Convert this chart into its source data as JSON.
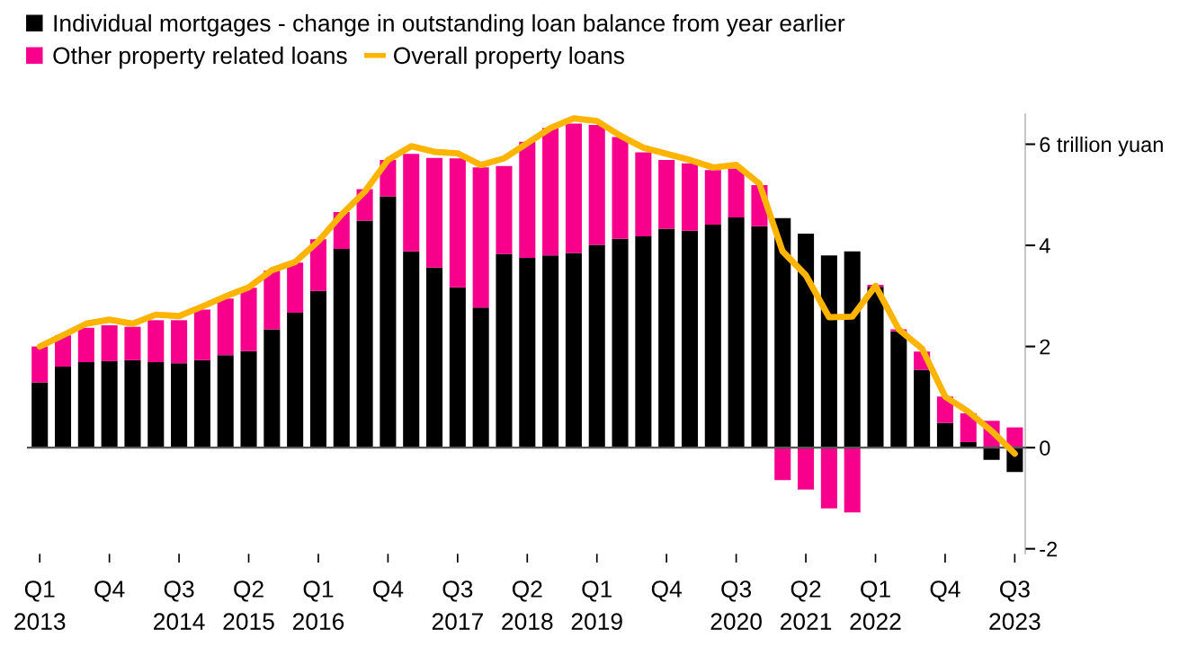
{
  "chart_data": {
    "type": "bar",
    "stacked": true,
    "categories": [
      "Q1\n2013",
      null,
      null,
      "Q4",
      null,
      null,
      "Q3\n2014",
      null,
      null,
      "Q2\n2015",
      null,
      null,
      "Q1\n2016",
      null,
      null,
      "Q4",
      null,
      null,
      "Q3\n2017",
      null,
      null,
      "Q2\n2018",
      null,
      null,
      "Q1\n2019",
      null,
      null,
      "Q4",
      null,
      null,
      "Q3\n2020",
      null,
      null,
      "Q2\n2021",
      null,
      null,
      "Q1\n2022",
      null,
      null,
      "Q4",
      null,
      null,
      "Q3\n2023"
    ],
    "series": [
      {
        "name": "Individual mortgages - change in outstanding loan balance from year earlier",
        "color": "#000000",
        "values": [
          1.29,
          1.6,
          1.69,
          1.71,
          1.73,
          1.69,
          1.67,
          1.73,
          1.83,
          1.91,
          2.34,
          2.67,
          3.1,
          3.93,
          4.49,
          4.97,
          3.88,
          3.56,
          3.17,
          2.77,
          3.83,
          3.75,
          3.8,
          3.85,
          4.01,
          4.13,
          4.18,
          4.33,
          4.29,
          4.41,
          4.55,
          4.38,
          4.54,
          4.23,
          3.8,
          3.88,
          3.18,
          2.3,
          1.54,
          0.49,
          0.11,
          -0.24,
          -0.48
        ]
      },
      {
        "name": "Other property related loans",
        "color": "#f7008c",
        "values": [
          0.71,
          0.62,
          0.68,
          0.71,
          0.66,
          0.83,
          0.85,
          1.0,
          1.12,
          1.25,
          1.16,
          0.99,
          1.02,
          0.73,
          0.62,
          0.72,
          1.93,
          2.17,
          2.55,
          2.77,
          1.74,
          2.3,
          2.52,
          2.56,
          2.37,
          2.01,
          1.66,
          1.36,
          1.33,
          1.08,
          0.97,
          0.81,
          -0.64,
          -0.83,
          -1.2,
          -1.28,
          0.04,
          0.04,
          0.36,
          0.52,
          0.57,
          0.53,
          0.4
        ]
      },
      {
        "name": "Overall property loans",
        "type": "line",
        "color": "#ffb400",
        "values": [
          2.0,
          2.22,
          2.45,
          2.53,
          2.45,
          2.63,
          2.6,
          2.79,
          2.99,
          3.17,
          3.51,
          3.67,
          4.08,
          4.61,
          5.06,
          5.69,
          5.96,
          5.85,
          5.82,
          5.59,
          5.72,
          6.02,
          6.32,
          6.51,
          6.46,
          6.17,
          5.93,
          5.81,
          5.69,
          5.54,
          5.59,
          5.22,
          3.88,
          3.41,
          2.58,
          2.59,
          3.2,
          2.34,
          1.96,
          1.01,
          0.71,
          0.33,
          -0.12
        ]
      }
    ],
    "ylim": [
      -2.1,
      6.6
    ],
    "yticks": [
      -2,
      0,
      2,
      4,
      {
        "value": 6,
        "label": "6 trillion yuan"
      }
    ],
    "ref_lines": [
      {
        "axis": "y",
        "value": 0,
        "color": "#555555"
      }
    ],
    "grid": false,
    "legend": "top left"
  }
}
